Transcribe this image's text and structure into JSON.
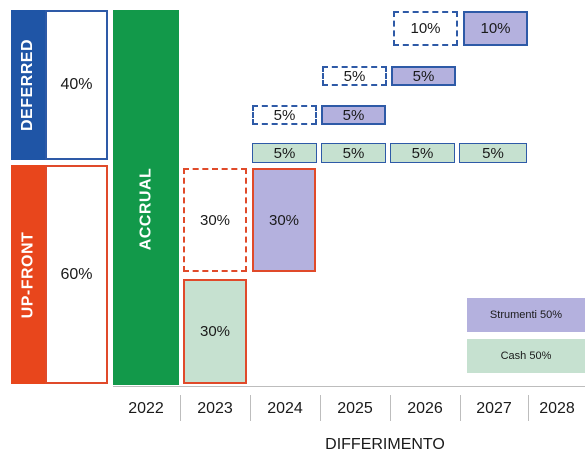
{
  "deferred": {
    "label": "DEFERRED",
    "percent": "40%",
    "color": "#1f55a6"
  },
  "upfront": {
    "label": "UP-FRONT",
    "percent": "60%",
    "color": "#e8461c"
  },
  "accrual": {
    "label": "ACCRUAL",
    "color": "#12994a"
  },
  "cells": {
    "r1_2026": "10%",
    "r1_2027": "10%",
    "r2_2025": "5%",
    "r2_2026": "5%",
    "r3_2024": "5%",
    "r3_2025": "5%",
    "r4_2024": "5%",
    "r4_2025": "5%",
    "r4_2026": "5%",
    "r4_2027": "5%",
    "up_2023_dashed": "30%",
    "up_2024": "30%",
    "up_2023_cash": "30%"
  },
  "years": [
    "2022",
    "2023",
    "2024",
    "2025",
    "2026",
    "2027",
    "2028"
  ],
  "axis_title": "DIFFERIMENTO",
  "legend": {
    "instruments": "Strumenti 50%",
    "cash": "Cash 50%"
  },
  "colors": {
    "instruments": "#b4b1de",
    "cash": "#c6e1d0",
    "outline_blue": "#2e5aa7",
    "outline_red": "#e04a2a"
  }
}
